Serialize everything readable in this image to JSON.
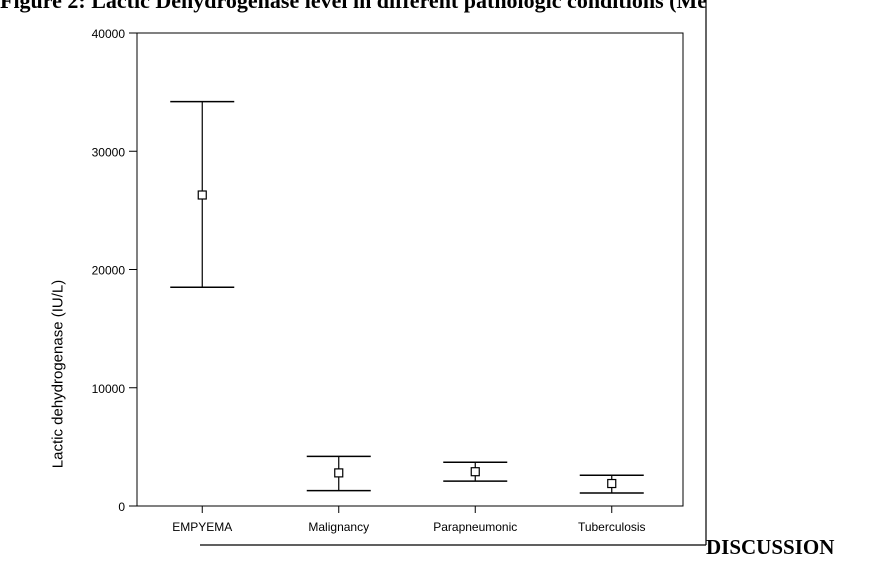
{
  "caption": "Figure 2: Lactic Dehydrogenase level in different pathologic conditions (Me",
  "footer_text": "DISCUSSION",
  "chart_data": {
    "type": "errorbar",
    "title": "",
    "xlabel": "",
    "ylabel": "Lactic dehydrogenase (IU/L)",
    "ylim": [
      0,
      40000
    ],
    "yticks": [
      0,
      10000,
      20000,
      30000,
      40000
    ],
    "ytick_labels": [
      "0",
      "10000",
      "20000",
      "30000",
      "40000"
    ],
    "categories": [
      "EMPYEMA",
      "Malignancy",
      "Parapneumonic",
      "Tuberculosis"
    ],
    "series": [
      {
        "mean": [
          26300,
          2800,
          2900,
          1900
        ],
        "lower": [
          18500,
          1300,
          2100,
          1100
        ],
        "upper": [
          34200,
          4200,
          3700,
          2600
        ]
      }
    ],
    "grid": false
  }
}
